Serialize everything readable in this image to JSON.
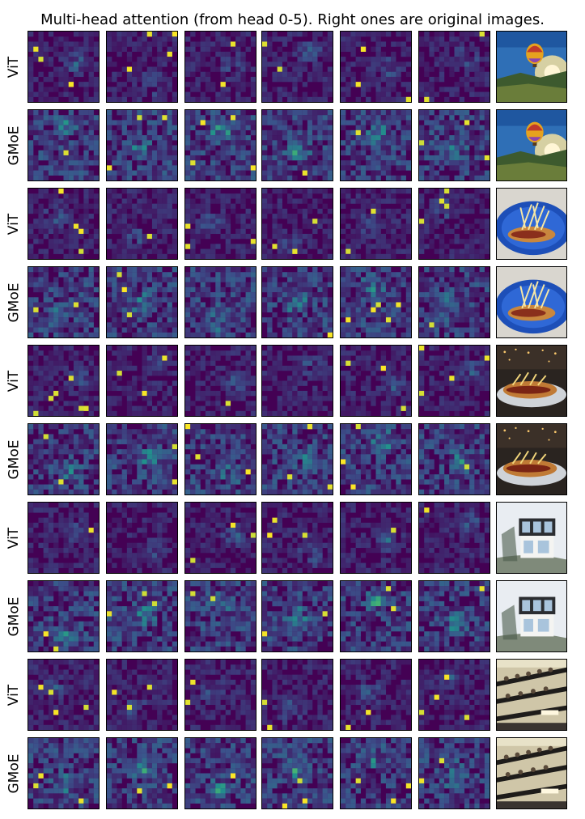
{
  "figure": {
    "title": "Multi-head attention (from head 0-5). Right ones are original images."
  },
  "chart_data": {
    "type": "heatmap",
    "title": "Multi-head attention (from head 0-5). Right ones are original images.",
    "grid_cells": 14,
    "colormap": [
      "#440154",
      "#3b528b",
      "#21918c",
      "#5ec962",
      "#fde725"
    ],
    "heads": 6,
    "rows": [
      {
        "label": "ViT",
        "image": "hot-air-balloon",
        "seed": 11
      },
      {
        "label": "GMoE",
        "image": "hot-air-balloon",
        "seed": 23
      },
      {
        "label": "ViT",
        "image": "hotdog-basket",
        "seed": 37
      },
      {
        "label": "GMoE",
        "image": "hotdog-basket",
        "seed": 41
      },
      {
        "label": "ViT",
        "image": "hotdog-plate",
        "seed": 53
      },
      {
        "label": "GMoE",
        "image": "hotdog-plate",
        "seed": 67
      },
      {
        "label": "ViT",
        "image": "modern-house",
        "seed": 71
      },
      {
        "label": "GMoE",
        "image": "modern-house",
        "seed": 83
      },
      {
        "label": "ViT",
        "image": "balcony-crowd",
        "seed": 97
      },
      {
        "label": "GMoE",
        "image": "balcony-crowd",
        "seed": 101
      }
    ]
  }
}
